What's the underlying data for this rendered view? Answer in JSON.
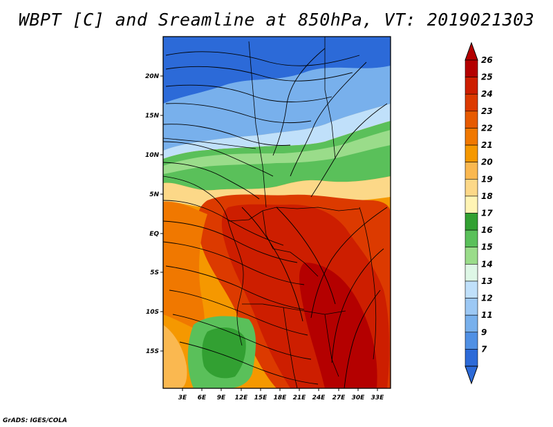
{
  "title": "WBPT [C] and Sreamline at 850hPa, VT: 2019021303",
  "credit": "GrADS: IGES/COLA",
  "map": {
    "variable": "WBPT",
    "units": "C",
    "level": "850hPa",
    "valid_time": "2019021303",
    "lat_labels": [
      "20N",
      "15N",
      "10N",
      "5N",
      "EQ",
      "5S",
      "10S",
      "15S"
    ],
    "lon_labels": [
      "3E",
      "6E",
      "9E",
      "12E",
      "15E",
      "18E",
      "21E",
      "24E",
      "27E",
      "30E",
      "33E"
    ]
  },
  "colorbar": {
    "labels": [
      "26",
      "25",
      "24",
      "23",
      "22",
      "21",
      "20",
      "19",
      "18",
      "17",
      "16",
      "15",
      "14",
      "13",
      "12",
      "11",
      "9",
      "7"
    ],
    "colors": [
      "#b40000",
      "#cd1e00",
      "#dc3a00",
      "#e65a00",
      "#f07800",
      "#f59800",
      "#fab850",
      "#fcd888",
      "#fff4b4",
      "#32a032",
      "#5ac05a",
      "#9adc8a",
      "#def7e6",
      "#c0e0fa",
      "#9cc8f4",
      "#78b0ec",
      "#5090e4",
      "#2c6ad8"
    ]
  },
  "colors": {
    "cold": "#2c6ad8",
    "mid": "#5ac05a",
    "warm": "#f59800",
    "hot": "#cd1e00"
  }
}
